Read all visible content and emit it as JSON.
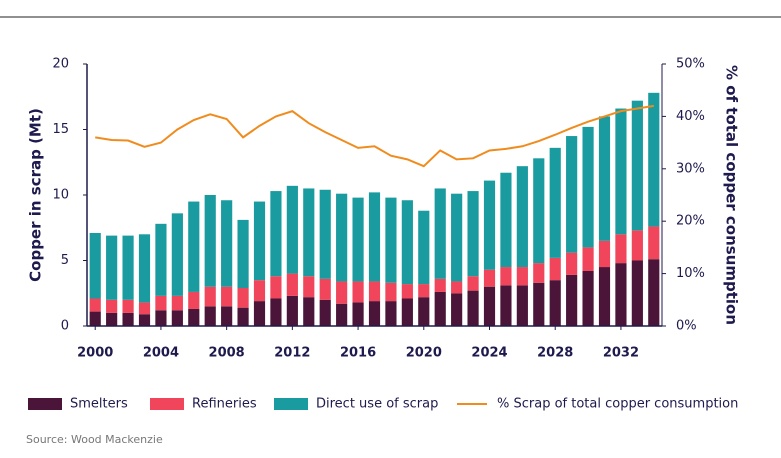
{
  "chart_data": {
    "type": "bar",
    "y_label": "Copper in scrap (Mt)",
    "y2_label": "% of total copper consumption",
    "source": "Source: Wood Mackenzie",
    "categories": [
      "2000",
      null,
      null,
      null,
      "2004",
      null,
      null,
      null,
      "2008",
      null,
      null,
      null,
      "2012",
      null,
      null,
      null,
      "2016",
      null,
      null,
      null,
      "2020",
      null,
      null,
      null,
      "2024",
      null,
      null,
      null,
      "2028",
      null,
      null,
      null,
      "2032",
      null,
      null
    ],
    "stacked": true,
    "series": [
      {
        "name": "Smelters",
        "color": "#4a1538",
        "values": [
          1.1,
          1.0,
          1.0,
          0.9,
          1.2,
          1.2,
          1.3,
          1.5,
          1.5,
          1.4,
          1.9,
          2.1,
          2.3,
          2.2,
          2.0,
          1.7,
          1.8,
          1.9,
          1.9,
          2.1,
          2.2,
          2.6,
          2.5,
          2.7,
          3.0,
          3.1,
          3.1,
          3.3,
          3.5,
          3.9,
          4.2,
          4.5,
          4.8,
          5.0,
          5.1
        ]
      },
      {
        "name": "Refineries",
        "color": "#f0455a",
        "values": [
          1.0,
          1.0,
          1.0,
          0.9,
          1.1,
          1.1,
          1.3,
          1.5,
          1.5,
          1.5,
          1.6,
          1.7,
          1.7,
          1.6,
          1.6,
          1.7,
          1.6,
          1.5,
          1.4,
          1.1,
          1.0,
          1.0,
          0.9,
          1.1,
          1.3,
          1.4,
          1.4,
          1.5,
          1.7,
          1.7,
          1.8,
          2.0,
          2.2,
          2.3,
          2.5
        ]
      },
      {
        "name": "Direct use of scrap",
        "color": "#1a9ba0",
        "values": [
          5.0,
          4.9,
          4.9,
          5.2,
          5.5,
          6.3,
          6.9,
          7.0,
          6.6,
          5.2,
          6.0,
          6.5,
          6.7,
          6.7,
          6.8,
          6.7,
          6.4,
          6.8,
          6.5,
          6.4,
          5.6,
          6.9,
          6.7,
          6.5,
          6.8,
          7.2,
          7.7,
          8.0,
          8.4,
          8.9,
          9.2,
          9.5,
          9.6,
          9.9,
          10.2
        ]
      },
      {
        "name": "% Scrap of total copper consumption",
        "type": "line",
        "axis": "y2",
        "color": "#f08c1e",
        "values": [
          36,
          35.5,
          35.4,
          34.2,
          35,
          37.5,
          39.3,
          40.4,
          39.5,
          36,
          38.2,
          40,
          41,
          38.7,
          37,
          35.5,
          34,
          34.3,
          32.5,
          31.8,
          30.5,
          33.5,
          31.8,
          32,
          33.5,
          33.8,
          34.3,
          35.3,
          36.5,
          37.8,
          39,
          40,
          41,
          41.5,
          42
        ]
      }
    ],
    "ylim": [
      0,
      20
    ],
    "yticks": [
      0,
      5,
      10,
      15,
      20
    ],
    "y2lim": [
      0,
      50
    ],
    "y2ticks": [
      {
        "value": 0,
        "label": "0%"
      },
      {
        "value": 10,
        "label": "10%"
      },
      {
        "value": 20,
        "label": "20%"
      },
      {
        "value": 30,
        "label": "30%"
      },
      {
        "value": 40,
        "label": "40%"
      },
      {
        "value": 50,
        "label": "50%"
      }
    ]
  }
}
